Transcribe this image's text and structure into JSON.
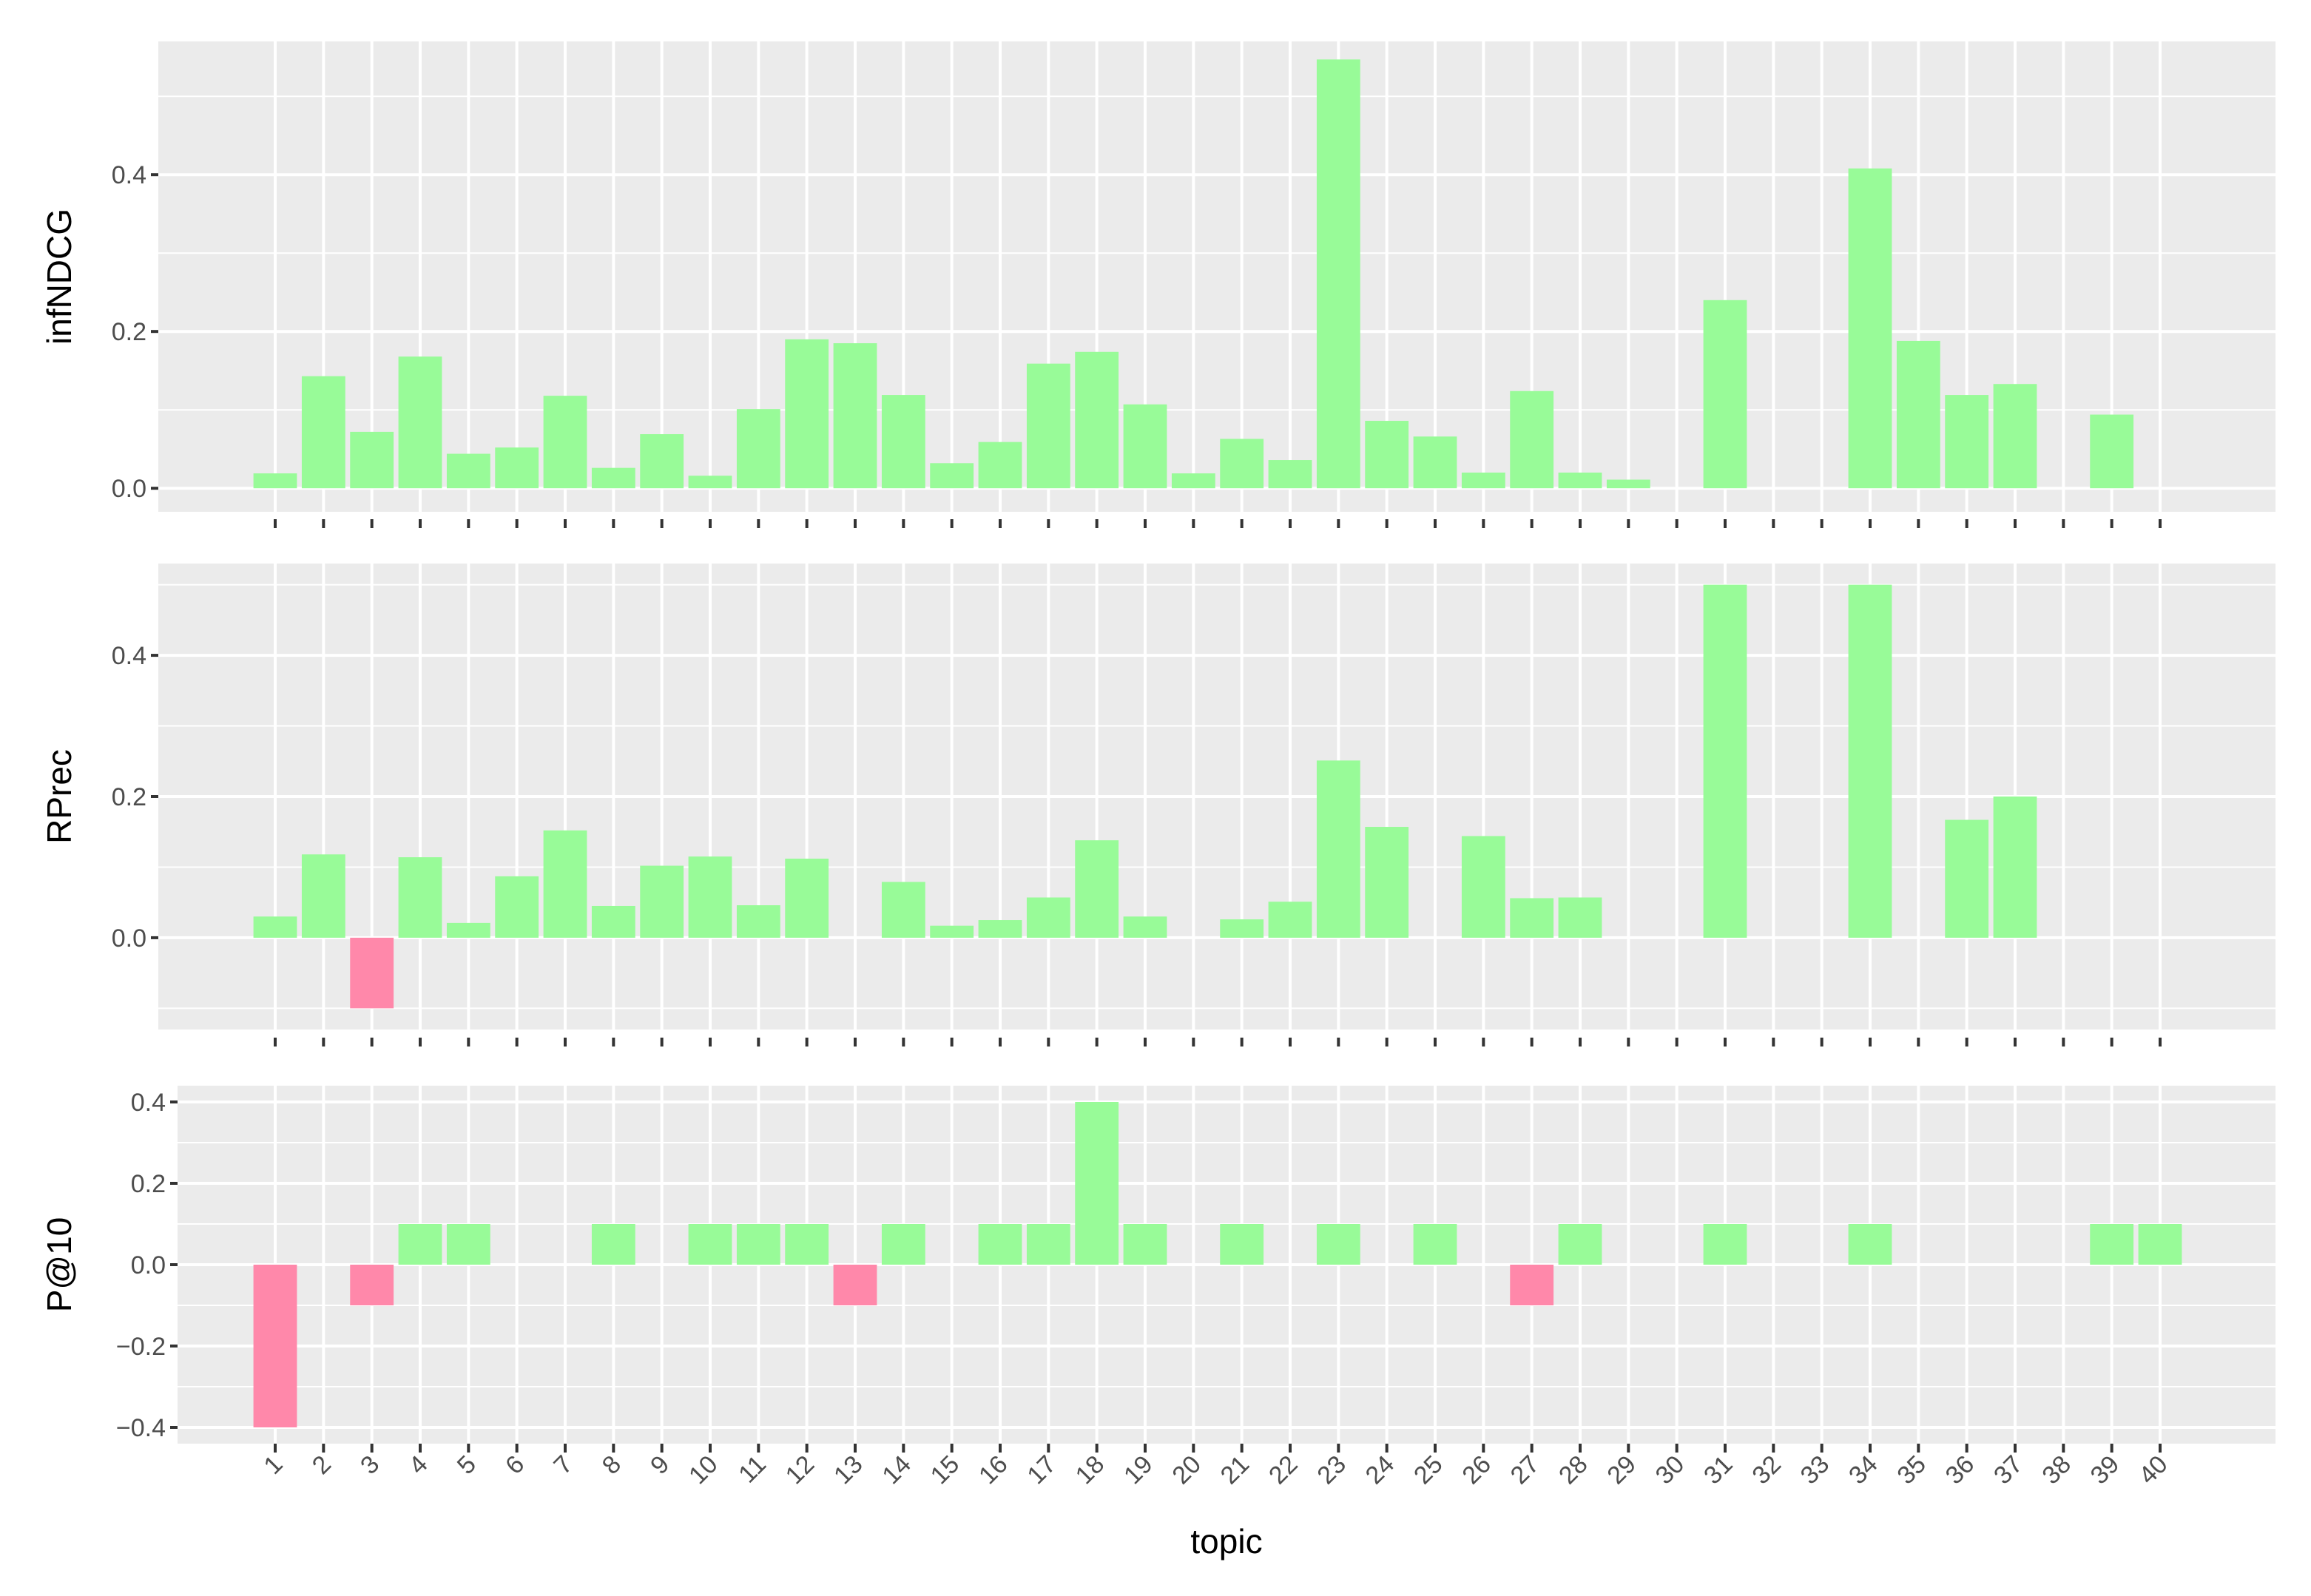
{
  "colors": {
    "positive": "#98FB98",
    "negative": "#FF88AA",
    "panel": "#EBEBEB",
    "grid": "#FFFFFF"
  },
  "chart_data": [
    {
      "type": "bar",
      "ylabel": "infNDCG",
      "xlabel": "",
      "ylim": [
        -0.03,
        0.57
      ],
      "yticks": [
        0.0,
        0.2,
        0.4
      ],
      "ytick_labels": [
        "0.0",
        "0.2",
        "0.4"
      ],
      "grid": true,
      "show_x_labels": false,
      "categories": [
        "1",
        "2",
        "3",
        "4",
        "5",
        "6",
        "7",
        "8",
        "9",
        "10",
        "11",
        "12",
        "13",
        "14",
        "15",
        "16",
        "17",
        "18",
        "19",
        "20",
        "21",
        "22",
        "23",
        "24",
        "25",
        "26",
        "27",
        "28",
        "29",
        "30",
        "31",
        "32",
        "33",
        "34",
        "35",
        "36",
        "37",
        "38",
        "39",
        "40"
      ],
      "values": [
        0.019,
        0.143,
        0.072,
        0.168,
        0.044,
        0.052,
        0.118,
        0.026,
        0.069,
        0.016,
        0.101,
        0.19,
        0.185,
        0.119,
        0.032,
        0.059,
        0.159,
        0.174,
        0.107,
        0.019,
        0.063,
        0.036,
        0.547,
        0.086,
        0.066,
        0.02,
        0.124,
        0.02,
        0.011,
        0.0,
        0.24,
        0.0,
        0.0,
        0.408,
        0.188,
        0.119,
        0.133,
        0.0,
        0.094,
        0.0
      ]
    },
    {
      "type": "bar",
      "ylabel": "RPrec",
      "xlabel": "",
      "ylim": [
        -0.13,
        0.53
      ],
      "yticks": [
        0.0,
        0.2,
        0.4
      ],
      "ytick_labels": [
        "0.0",
        "0.2",
        "0.4"
      ],
      "grid": true,
      "show_x_labels": false,
      "categories": [
        "1",
        "2",
        "3",
        "4",
        "5",
        "6",
        "7",
        "8",
        "9",
        "10",
        "11",
        "12",
        "13",
        "14",
        "15",
        "16",
        "17",
        "18",
        "19",
        "20",
        "21",
        "22",
        "23",
        "24",
        "25",
        "26",
        "27",
        "28",
        "29",
        "30",
        "31",
        "32",
        "33",
        "34",
        "35",
        "36",
        "37",
        "38",
        "39",
        "40"
      ],
      "values": [
        0.03,
        0.118,
        -0.1,
        0.114,
        0.021,
        0.087,
        0.152,
        0.045,
        0.102,
        0.115,
        0.046,
        0.112,
        0.0,
        0.079,
        0.017,
        0.025,
        0.057,
        0.138,
        0.03,
        0.0,
        0.026,
        0.051,
        0.251,
        0.157,
        0.0,
        0.144,
        0.056,
        0.057,
        0.0,
        0.0,
        0.5,
        0.0,
        0.0,
        0.5,
        0.0,
        0.167,
        0.2,
        0.0,
        0.0,
        0.0
      ]
    },
    {
      "type": "bar",
      "ylabel": "P@10",
      "xlabel": "topic",
      "ylim": [
        -0.44,
        0.44
      ],
      "yticks": [
        -0.4,
        -0.2,
        0.0,
        0.2,
        0.4
      ],
      "ytick_labels": [
        "−0.4",
        "−0.2",
        "0.0",
        "0.2",
        "0.4"
      ],
      "grid": true,
      "show_x_labels": true,
      "categories": [
        "1",
        "2",
        "3",
        "4",
        "5",
        "6",
        "7",
        "8",
        "9",
        "10",
        "11",
        "12",
        "13",
        "14",
        "15",
        "16",
        "17",
        "18",
        "19",
        "20",
        "21",
        "22",
        "23",
        "24",
        "25",
        "26",
        "27",
        "28",
        "29",
        "30",
        "31",
        "32",
        "33",
        "34",
        "35",
        "36",
        "37",
        "38",
        "39",
        "40"
      ],
      "values": [
        -0.4,
        0.0,
        -0.1,
        0.1,
        0.1,
        0.0,
        0.0,
        0.1,
        0.0,
        0.1,
        0.1,
        0.1,
        -0.1,
        0.1,
        0.0,
        0.1,
        0.1,
        0.4,
        0.1,
        0.0,
        0.1,
        0.0,
        0.1,
        0.0,
        0.1,
        0.0,
        -0.1,
        0.1,
        0.0,
        0.0,
        0.1,
        0.0,
        0.0,
        0.1,
        0.0,
        0.0,
        0.0,
        0.0,
        0.1,
        0.1
      ]
    }
  ]
}
